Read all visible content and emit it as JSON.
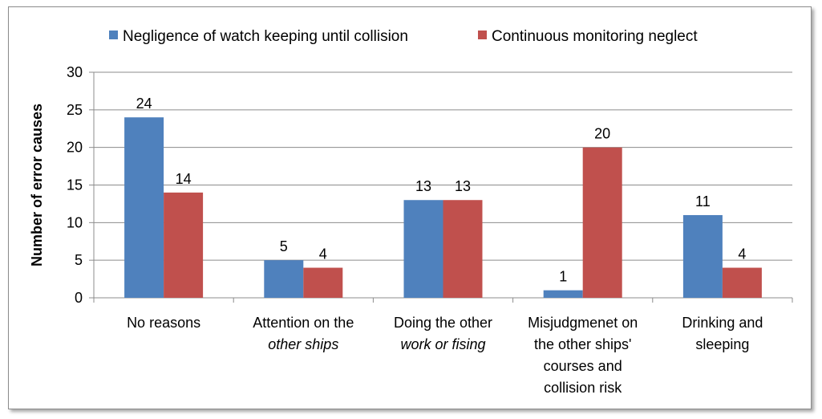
{
  "chart_data": {
    "type": "bar",
    "ylabel": "Number of error causes",
    "xlabel": "",
    "ylim": [
      0,
      30
    ],
    "yticks": [
      0,
      5,
      10,
      15,
      20,
      25,
      30
    ],
    "grid": true,
    "legend_position": "top",
    "categories": [
      {
        "lines": [
          {
            "text": "No reasons",
            "italic": false
          }
        ]
      },
      {
        "lines": [
          {
            "text": "Attention on the",
            "italic": false
          },
          {
            "text": "other ships",
            "italic": true
          }
        ]
      },
      {
        "lines": [
          {
            "text": "Doing the other",
            "italic": false
          },
          {
            "text": "work or fising",
            "italic": true
          }
        ]
      },
      {
        "lines": [
          {
            "text": "Misjudgmenet on",
            "italic": false
          },
          {
            "text": "the other ships'",
            "italic": false
          },
          {
            "text": "courses and",
            "italic": false
          },
          {
            "text": "collision risk",
            "italic": false
          }
        ]
      },
      {
        "lines": [
          {
            "text": "Drinking and",
            "italic": false
          },
          {
            "text": "sleeping",
            "italic": false
          }
        ]
      }
    ],
    "series": [
      {
        "name": "Negligence of watch keeping until collision",
        "color": "#4f81bd",
        "values": [
          24,
          5,
          13,
          1,
          11
        ]
      },
      {
        "name": "Continuous monitoring neglect",
        "color": "#c0504d",
        "values": [
          14,
          4,
          13,
          20,
          4
        ]
      }
    ]
  }
}
